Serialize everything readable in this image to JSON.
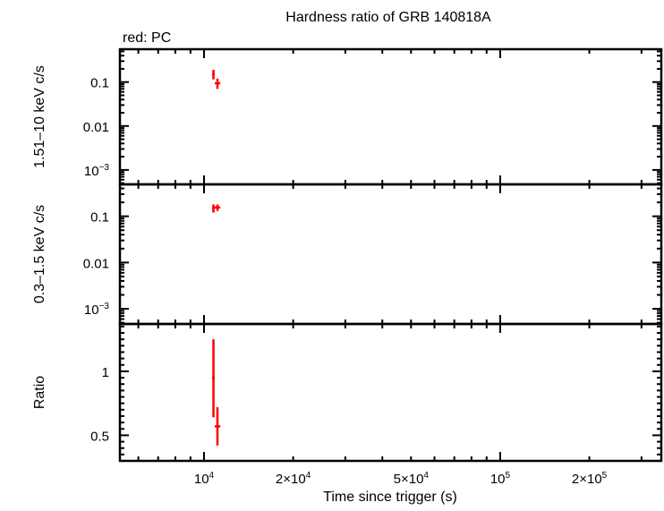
{
  "chart_data": {
    "type": "scatter",
    "title": "Hardness ratio of GRB 140818A",
    "legend_note": "red: PC",
    "xlabel": "Time since trigger (s)",
    "x_scale": "log",
    "xlim": [
      5200,
      350000
    ],
    "x_ticks": [
      {
        "value": 10000,
        "label": "10",
        "exp": "4"
      },
      {
        "value": 20000,
        "label": "2×10",
        "exp": "4"
      },
      {
        "value": 50000,
        "label": "5×10",
        "exp": "4"
      },
      {
        "value": 100000,
        "label": "10",
        "exp": "5"
      },
      {
        "value": 200000,
        "label": "2×10",
        "exp": "5"
      }
    ],
    "color": "#ff0000",
    "panels": [
      {
        "ylabel": "1.51–10 keV c/s",
        "y_scale": "log",
        "ylim": [
          0.00047,
          0.56
        ],
        "y_ticks": [
          {
            "value": 0.1,
            "label": "0.1"
          },
          {
            "value": 0.01,
            "label": "0.01"
          },
          {
            "value": 0.001,
            "label": "10",
            "exp": "−3"
          }
        ],
        "points": [
          {
            "x": 10760,
            "xerr": [
              10650,
              10870
            ],
            "y": 0.15,
            "yerr": [
              0.115,
              0.19
            ]
          },
          {
            "x": 11100,
            "xerr": [
              10870,
              11350
            ],
            "y": 0.094,
            "yerr": [
              0.07,
              0.12
            ]
          }
        ]
      },
      {
        "ylabel": "0.3–1.5 keV c/s",
        "y_scale": "log",
        "ylim": [
          0.00047,
          0.49
        ],
        "y_ticks": [
          {
            "value": 0.1,
            "label": "0.1"
          },
          {
            "value": 0.01,
            "label": "0.01"
          },
          {
            "value": 0.001,
            "label": "10",
            "exp": "−3"
          }
        ],
        "points": [
          {
            "x": 10760,
            "xerr": [
              10650,
              10870
            ],
            "y": 0.15,
            "yerr": [
              0.12,
              0.18
            ]
          },
          {
            "x": 11100,
            "xerr": [
              10870,
              11350
            ],
            "y": 0.155,
            "yerr": [
              0.13,
              0.18
            ]
          }
        ]
      },
      {
        "ylabel": "Ratio",
        "y_scale": "linear",
        "ylim": [
          0.3,
          1.37
        ],
        "y_ticks": [
          {
            "value": 1,
            "label": "1"
          },
          {
            "value": 0.5,
            "label": "0.5"
          }
        ],
        "points": [
          {
            "x": 10760,
            "xerr": [
              10650,
              10870
            ],
            "y": 0.95,
            "yerr": [
              0.64,
              1.25
            ]
          },
          {
            "x": 11100,
            "xerr": [
              10870,
              11350
            ],
            "y": 0.57,
            "yerr": [
              0.42,
              0.72
            ]
          }
        ]
      }
    ]
  }
}
